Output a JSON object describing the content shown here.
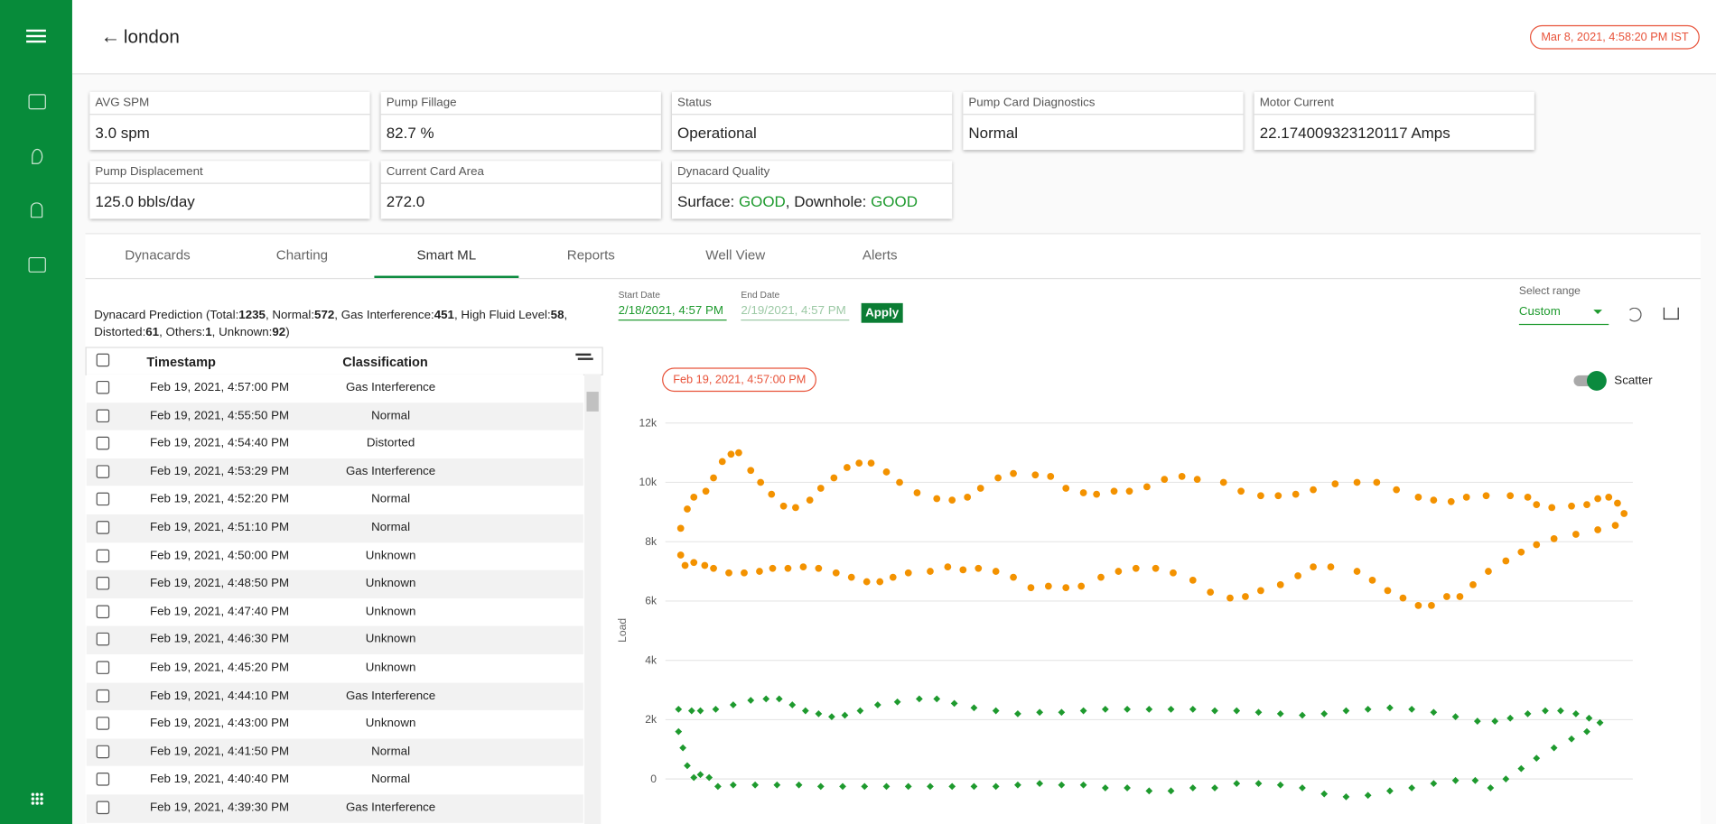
{
  "header": {
    "title": "london",
    "timestamp": "Mar 8, 2021, 4:58:20 PM IST"
  },
  "cards": [
    {
      "label": "AVG SPM",
      "value": "3.0 spm"
    },
    {
      "label": "Pump Fillage",
      "value": "82.7 %"
    },
    {
      "label": "Status",
      "value": "Operational"
    },
    {
      "label": "Pump Card Diagnostics",
      "value": "Normal"
    },
    {
      "label": "Motor Current",
      "value": "22.174009323120117 Amps"
    },
    {
      "label": "Pump Displacement",
      "value": "125.0 bbls/day"
    },
    {
      "label": "Current Card Area",
      "value": "272.0"
    }
  ],
  "quality": {
    "label": "Dynacard Quality",
    "items": [
      {
        "name": "Surface",
        "value": "GOOD"
      },
      {
        "name": "Downhole",
        "value": "GOOD"
      }
    ]
  },
  "tabs": {
    "items": [
      "Dynacards",
      "Charting",
      "Smart ML",
      "Reports",
      "Well View",
      "Alerts"
    ],
    "active": 2
  },
  "prediction": {
    "label": "Dynacard Prediction",
    "counts": [
      {
        "name": "Total",
        "value": 1235
      },
      {
        "name": "Normal",
        "value": 572
      },
      {
        "name": "Gas Interference",
        "value": 451
      },
      {
        "name": "High Fluid Level",
        "value": 58
      },
      {
        "name": "Distorted",
        "value": 61
      },
      {
        "name": "Others",
        "value": 1
      },
      {
        "name": "Unknown",
        "value": 92
      }
    ]
  },
  "table": {
    "columns": [
      "Timestamp",
      "Classification"
    ],
    "rows": [
      [
        "Feb 19, 2021, 4:57:00 PM",
        "Gas Interference"
      ],
      [
        "Feb 19, 2021, 4:55:50 PM",
        "Normal"
      ],
      [
        "Feb 19, 2021, 4:54:40 PM",
        "Distorted"
      ],
      [
        "Feb 19, 2021, 4:53:29 PM",
        "Gas Interference"
      ],
      [
        "Feb 19, 2021, 4:52:20 PM",
        "Normal"
      ],
      [
        "Feb 19, 2021, 4:51:10 PM",
        "Normal"
      ],
      [
        "Feb 19, 2021, 4:50:00 PM",
        "Unknown"
      ],
      [
        "Feb 19, 2021, 4:48:50 PM",
        "Unknown"
      ],
      [
        "Feb 19, 2021, 4:47:40 PM",
        "Unknown"
      ],
      [
        "Feb 19, 2021, 4:46:30 PM",
        "Unknown"
      ],
      [
        "Feb 19, 2021, 4:45:20 PM",
        "Unknown"
      ],
      [
        "Feb 19, 2021, 4:44:10 PM",
        "Gas Interference"
      ],
      [
        "Feb 19, 2021, 4:43:00 PM",
        "Unknown"
      ],
      [
        "Feb 19, 2021, 4:41:50 PM",
        "Normal"
      ],
      [
        "Feb 19, 2021, 4:40:40 PM",
        "Normal"
      ],
      [
        "Feb 19, 2021, 4:39:30 PM",
        "Gas Interference"
      ]
    ]
  },
  "controls": {
    "start_label": "Start Date",
    "start": "2/18/2021, 4:57 PM",
    "end_label": "End Date",
    "end": "2/19/2021, 4:57 PM",
    "apply": "Apply",
    "range_label": "Select range",
    "range": "Custom",
    "selected_card": "Feb 19, 2021, 4:57:00 PM",
    "toggle": "Scatter"
  },
  "chart_data": {
    "type": "scatter",
    "ylabel": "Load",
    "xlim": [
      0,
      89.2
    ],
    "ylim": [
      -1000,
      12500
    ],
    "yticks": [
      0,
      {
        "value": 2000,
        "label": "2k"
      },
      {
        "value": 4000,
        "label": "4k"
      },
      {
        "value": 6000,
        "label": "6k"
      },
      {
        "value": 8000,
        "label": "8k"
      },
      {
        "value": 10000,
        "label": "10k"
      },
      {
        "value": 12000,
        "label": "12k"
      }
    ],
    "grid": true,
    "series": [
      {
        "color": "#f39200",
        "marker": "circle",
        "x": [
          2.2,
          2.8,
          3.4,
          4.5,
          5.2,
          6.0,
          6.8,
          7.5,
          8.6,
          9.5,
          10.5,
          11.6,
          12.7,
          14.0,
          15.0,
          16.2,
          17.4,
          18.5,
          19.6,
          21.0,
          22.2,
          23.8,
          25.6,
          27.0,
          28.4,
          29.6,
          31.2,
          32.6,
          34.6,
          36.0,
          37.4,
          39.0,
          40.2,
          41.8,
          43.2,
          44.8,
          46.4,
          48.0,
          49.4,
          51.8,
          53.4,
          55.2,
          56.8,
          58.4,
          60.0,
          62.0,
          64.0,
          65.8,
          67.6,
          69.6,
          71.0,
          72.6,
          74.0,
          75.8,
          78.0,
          79.6,
          80.4,
          81.8,
          83.6,
          85.0,
          86.0,
          87.0,
          87.8,
          88.4,
          87.6,
          86.0,
          84.0,
          82.0,
          80.4,
          79.0,
          77.6,
          76.0,
          74.6,
          73.4,
          72.2,
          70.8,
          69.6,
          68.2,
          66.8,
          65.4,
          64.0,
          61.6,
          60.0,
          58.6,
          57.0,
          55.2,
          53.8,
          52.4,
          50.6,
          49.0,
          47.2,
          45.6,
          43.8,
          42.2,
          40.6,
          38.8,
          37.4,
          35.8,
          34.2,
          32.6,
          31.0,
          29.4,
          28.0,
          26.6,
          25.0,
          23.0,
          21.6,
          20.4,
          19.2,
          17.8,
          16.4,
          14.8,
          13.4,
          12.0,
          10.6,
          9.4,
          8.0,
          6.6,
          5.2,
          4.4,
          3.4,
          2.6,
          2.2
        ],
        "values": [
          8450,
          9100,
          9500,
          9700,
          10150,
          10700,
          10950,
          11000,
          10400,
          10000,
          9600,
          9200,
          9150,
          9400,
          9800,
          10150,
          10500,
          10650,
          10650,
          10350,
          10000,
          9650,
          9450,
          9400,
          9500,
          9800,
          10150,
          10300,
          10250,
          10200,
          9800,
          9650,
          9600,
          9700,
          9700,
          9850,
          10100,
          10200,
          10100,
          10000,
          9700,
          9550,
          9550,
          9600,
          9750,
          9950,
          10000,
          10000,
          9750,
          9500,
          9400,
          9350,
          9500,
          9550,
          9550,
          9500,
          9250,
          9150,
          9200,
          9250,
          9450,
          9500,
          9300,
          8950,
          8550,
          8400,
          8250,
          8100,
          7900,
          7650,
          7350,
          7000,
          6550,
          6150,
          6150,
          5850,
          5850,
          6100,
          6350,
          6700,
          7000,
          7150,
          7150,
          6850,
          6550,
          6350,
          6150,
          6100,
          6300,
          6700,
          6950,
          7100,
          7100,
          7000,
          6800,
          6500,
          6450,
          6500,
          6450,
          6800,
          7000,
          7100,
          7050,
          7150,
          7000,
          6950,
          6800,
          6650,
          6650,
          6800,
          6950,
          7100,
          7150,
          7100,
          7100,
          7000,
          6950,
          6950,
          7100,
          7200,
          7300,
          7200,
          7550
        ]
      },
      {
        "color": "#1e9a2e",
        "marker": "diamond",
        "x": [
          2.0,
          3.2,
          4.0,
          5.4,
          7.0,
          8.6,
          10.0,
          11.2,
          12.4,
          13.6,
          14.8,
          16.0,
          17.2,
          18.6,
          20.2,
          22.0,
          24.0,
          25.6,
          27.2,
          29.0,
          31.0,
          33.0,
          35.0,
          37.0,
          39.0,
          41.0,
          43.0,
          45.0,
          47.0,
          49.0,
          51.0,
          53.0,
          55.0,
          57.0,
          59.0,
          61.0,
          63.0,
          65.0,
          67.0,
          69.0,
          71.0,
          73.0,
          75.0,
          76.6,
          78.0,
          79.6,
          81.2,
          82.6,
          84.0,
          85.2,
          86.2,
          85.0,
          83.6,
          82.0,
          80.4,
          79.0,
          77.6,
          76.2,
          74.8,
          73.0,
          71.0,
          69.0,
          67.0,
          65.0,
          63.0,
          61.0,
          59.0,
          57.0,
          55.0,
          53.0,
          51.0,
          49.0,
          47.0,
          45.0,
          43.0,
          41.0,
          39.0,
          37.0,
          35.0,
          33.0,
          31.0,
          29.0,
          27.0,
          25.0,
          23.0,
          21.0,
          19.0,
          17.0,
          15.0,
          13.0,
          11.0,
          9.0,
          7.0,
          5.6,
          4.8,
          4.0,
          3.4,
          2.8,
          2.4,
          2.0
        ],
        "values": [
          2350,
          2300,
          2300,
          2350,
          2500,
          2650,
          2700,
          2700,
          2500,
          2300,
          2200,
          2100,
          2150,
          2300,
          2500,
          2600,
          2700,
          2700,
          2550,
          2400,
          2300,
          2200,
          2250,
          2250,
          2300,
          2350,
          2350,
          2350,
          2350,
          2350,
          2300,
          2300,
          2250,
          2200,
          2150,
          2200,
          2300,
          2350,
          2400,
          2350,
          2250,
          2100,
          1950,
          1950,
          2050,
          2200,
          2300,
          2300,
          2200,
          2050,
          1900,
          1600,
          1350,
          1050,
          700,
          350,
          0,
          -300,
          -50,
          -50,
          -150,
          -300,
          -400,
          -550,
          -600,
          -500,
          -300,
          -200,
          -150,
          -150,
          -300,
          -300,
          -400,
          -400,
          -300,
          -300,
          -200,
          -200,
          -150,
          -200,
          -250,
          -250,
          -250,
          -250,
          -250,
          -250,
          -250,
          -250,
          -250,
          -200,
          -200,
          -200,
          -200,
          -250,
          50,
          150,
          50,
          450,
          1050,
          1600
        ]
      }
    ]
  }
}
